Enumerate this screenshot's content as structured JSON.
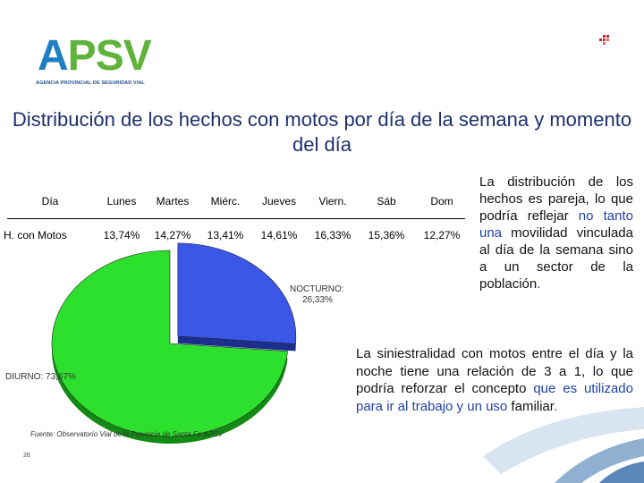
{
  "logo": {
    "main": "APSV",
    "a": "A",
    "psv": "PSV",
    "subtitle": "AGENCIA PROVINCIAL DE SEGURIDAD VIAL"
  },
  "title": "Distribución de los hechos con motos por día de la semana y momento del día",
  "table": {
    "headers": [
      "Día",
      "Lunes",
      "Martes",
      "Miérc.",
      "Jueves",
      "Viern.",
      "Sáb",
      "Dom"
    ],
    "row_label": "H. con Motos",
    "values": [
      "13,74%",
      "14,27%",
      "13,41%",
      "14,61%",
      "16,33%",
      "15,36%",
      "12,27%"
    ]
  },
  "chart_data": {
    "type": "pie",
    "slices": [
      {
        "label": "NOCTURNO:",
        "value_text": "26,33%",
        "value": 26.33,
        "color": "#3a57e8"
      },
      {
        "label": "DIURNO:",
        "value_text": "73,67%",
        "value": 73.67,
        "color": "#2ee02e"
      }
    ],
    "source": "Fuente: Observatorio Vial de la Provincia de Santa Fe-APSV"
  },
  "paragraph1": {
    "part1": "La distribución de los hechos es pareja, lo que podría reflejar ",
    "part2_blue": "no tanto una",
    "part3": " movilidad vinculada al día de la semana sino a un sector de la población",
    "part4_blue": ".",
    "full": "La distribución de los hechos es pareja, lo que podría reflejar no tanto una movilidad vinculada al día de la semana sino a un sector de la población."
  },
  "paragraph2": {
    "part1": "La siniestralidad con motos entre el día y la noche tiene una relación de 3 a 1, lo que podría reforzar el concepto ",
    "part2_blue": "que es utilizado para ir al trabajo y un uso",
    "part3": " familiar",
    "part4_blue": ".",
    "full": "La siniestralidad con motos entre el día y la noche tiene una relación de 3 a 1, lo que podría reforzar el concepto que es utilizado para ir al trabajo y un uso familiar."
  },
  "page_number": "26",
  "colors": {
    "title": "#1e2f6b",
    "logo_blue": "#1f7fc2",
    "logo_green": "#5fb23a",
    "text_blue": "#1f3fa8"
  }
}
